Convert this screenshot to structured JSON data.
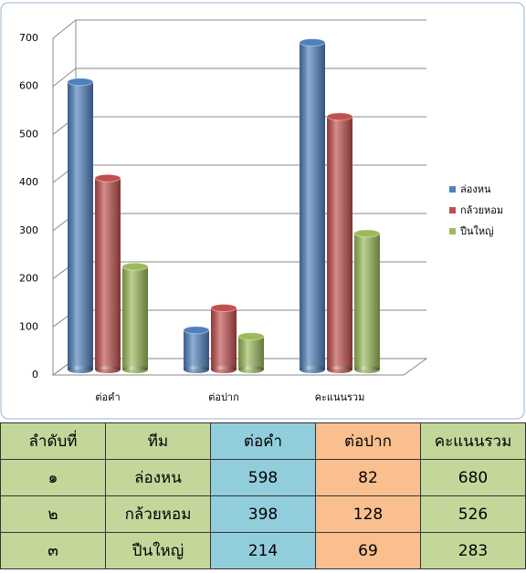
{
  "chart_data": {
    "type": "bar",
    "categories": [
      "ต่อคำ",
      "ต่อปาก",
      "คะแนนรวม"
    ],
    "series": [
      {
        "name": "ล่องหน",
        "color": "#4f81bd",
        "values": [
          598,
          82,
          680
        ]
      },
      {
        "name": "กล้วยหอม",
        "color": "#c0504d",
        "values": [
          398,
          128,
          526
        ]
      },
      {
        "name": "ปืนใหญ่",
        "color": "#9bbb59",
        "values": [
          214,
          69,
          283
        ]
      }
    ],
    "ylim": [
      0,
      700
    ],
    "yticks": [
      0,
      100,
      200,
      300,
      400,
      500,
      600,
      700
    ],
    "grid": true,
    "legend": "right"
  },
  "table": {
    "header": [
      "ลำดับที่",
      "ทีม",
      "ต่อคำ",
      "ต่อปาก",
      "คะแนนรวม"
    ],
    "rows": [
      [
        "๑",
        "ล่องหน",
        598,
        82,
        680
      ],
      [
        "๒",
        "กล้วยหอม",
        398,
        128,
        526
      ],
      [
        "๓",
        "ปืนใหญ่",
        214,
        69,
        283
      ]
    ]
  }
}
